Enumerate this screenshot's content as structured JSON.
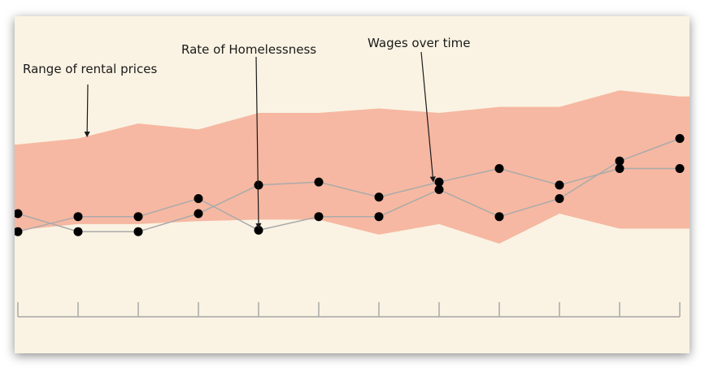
{
  "chart_data": {
    "type": "area",
    "title": "",
    "xlabel": "",
    "ylabel": "",
    "x": [
      1,
      2,
      3,
      4,
      5,
      6,
      7,
      8,
      9,
      10,
      11,
      12
    ],
    "ylim": [
      0,
      100
    ],
    "grid": false,
    "series": [
      {
        "kind": "band",
        "upper": [
          76,
          80,
          90,
          86,
          97,
          97,
          100,
          97,
          101,
          101,
          112,
          108
        ],
        "lower": [
          19,
          23,
          23,
          25,
          26,
          26,
          16,
          23,
          10,
          30,
          20,
          20
        ],
        "color": "#f6b8a2"
      },
      {
        "kind": "line",
        "values": [
          30,
          18,
          18,
          30,
          49,
          51,
          41,
          51,
          60,
          49,
          60,
          60
        ],
        "color": "#aaaaaa"
      },
      {
        "kind": "line",
        "values": [
          18,
          28,
          28,
          40,
          19,
          28,
          28,
          46,
          28,
          40,
          65,
          80
        ],
        "color": "#aaaaaa"
      }
    ],
    "annotations": [
      {
        "text": "Range of rental prices",
        "x": 2.15,
        "y": 80
      },
      {
        "text": "Rate of Homelessness",
        "x": 5,
        "y": 19
      },
      {
        "text": "Wages over time",
        "x": 7.9,
        "y": 50
      }
    ]
  },
  "colors": {
    "background": "#faf3e3",
    "band": "#f6b8a2",
    "axis": "#a8a8a8",
    "marker": "#000000",
    "text": "#1a1a1a"
  }
}
